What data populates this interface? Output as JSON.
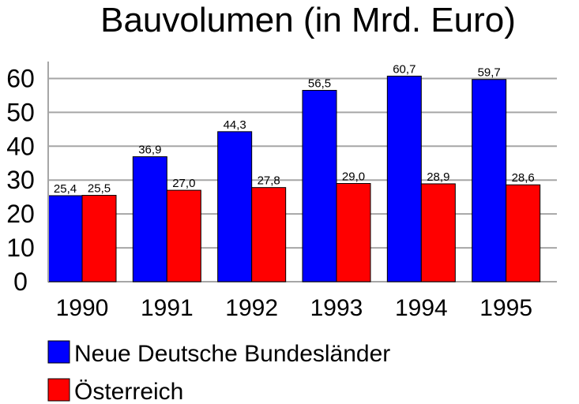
{
  "chart_data": {
    "type": "bar",
    "title": "Bauvolumen (in Mrd. Euro)",
    "xlabel": "",
    "ylabel": "",
    "categories": [
      "1990",
      "1991",
      "1992",
      "1993",
      "1994",
      "1995"
    ],
    "series": [
      {
        "name": "Neue Deutsche Bundesländer",
        "color": "#0000ff",
        "values": [
          25.4,
          36.9,
          44.3,
          56.5,
          60.7,
          59.7
        ],
        "labels": [
          "25,4",
          "36,9",
          "44,3",
          "56,5",
          "60,7",
          "59,7"
        ]
      },
      {
        "name": "Österreich",
        "color": "#ff0000",
        "values": [
          25.5,
          27.0,
          27.8,
          29.0,
          28.9,
          28.6
        ],
        "labels": [
          "25,5",
          "27,0",
          "27,8",
          "29,0",
          "28,9",
          "28,6"
        ]
      }
    ],
    "ylim": [
      0,
      65
    ],
    "yticks": [
      "0",
      "10",
      "20",
      "30",
      "40",
      "50",
      "60"
    ],
    "ytick_values": [
      0,
      10,
      20,
      30,
      40,
      50,
      60
    ],
    "grid": true,
    "grid_color": "#a6a6a6",
    "legend_position": "bottom-left"
  }
}
